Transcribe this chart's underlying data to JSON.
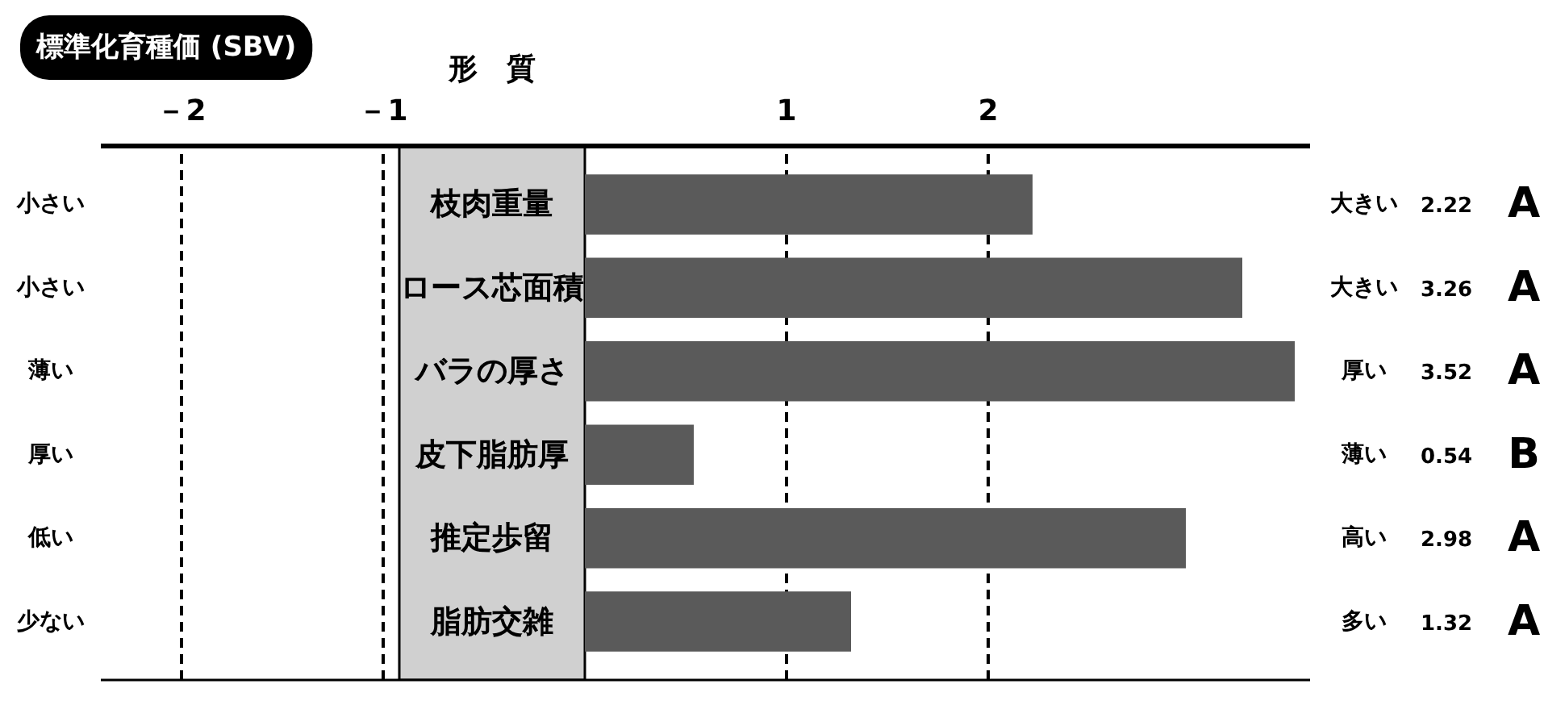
{
  "chart_data": {
    "type": "bar",
    "orientation": "horizontal",
    "title": "標準化育種価 (SBV)",
    "categories": [
      "枝肉重量",
      "ロース芯面積",
      "バラの厚さ",
      "皮下脂肪厚",
      "推定歩留",
      "脂肪交雑"
    ],
    "values": [
      2.22,
      3.26,
      3.52,
      0.54,
      2.98,
      1.32
    ],
    "color": "#5a5a5a",
    "data_labels": true,
    "grid": "x",
    "bands": [
      {
        "axis": "x",
        "from": -0.92,
        "to": 0,
        "color": "#d0d0d0"
      }
    ],
    "xlim": [
      -2.4,
      3.6
    ],
    "xticks": [
      {
        "value": -2,
        "label": "－2"
      },
      {
        "value": -1,
        "label": "－1"
      },
      1,
      2
    ],
    "annotations": [
      "形　質",
      "小さい",
      "小さい",
      "薄い",
      "厚い",
      "低い",
      "少ない",
      "大きい",
      "大きい",
      "厚い",
      "薄い",
      "高い",
      "多い",
      "A",
      "A",
      "A",
      "B",
      "A",
      "A"
    ]
  }
}
